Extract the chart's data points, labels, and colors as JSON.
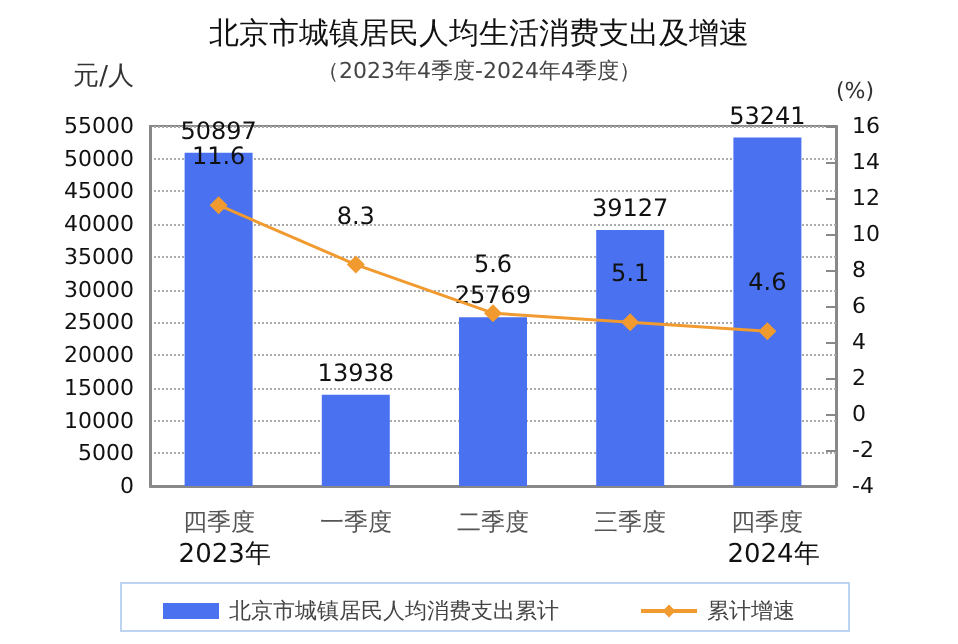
{
  "chart_data": {
    "type": "bar",
    "title": "北京市城镇居民人均生活消费支出及增速",
    "subtitle": "（2023年4季度-2024年4季度）",
    "ylabel": "元/人",
    "y2label": "(%)",
    "categories": [
      "四季度",
      "一季度",
      "二季度",
      "三季度",
      "四季度"
    ],
    "annotations": [
      "2023年",
      "2024年"
    ],
    "series": [
      {
        "name": "北京市城镇居民人均消费支出累计",
        "color": "#4a72f0",
        "values": [
          50897,
          13938,
          25769,
          39127,
          53241
        ]
      },
      {
        "name": "累计增速",
        "type": "line",
        "axis": "y2",
        "color": "#f09a30",
        "marker": "diamond",
        "values": [
          11.6,
          8.3,
          5.6,
          5.1,
          4.6
        ]
      }
    ],
    "ylim": [
      0,
      55000
    ],
    "yticks": [
      0,
      5000,
      10000,
      15000,
      20000,
      25000,
      30000,
      35000,
      40000,
      45000,
      50000,
      55000
    ],
    "y2lim": [
      -4,
      16
    ],
    "y2ticks": [
      -4,
      -2,
      0,
      2,
      4,
      6,
      8,
      10,
      12,
      14,
      16
    ],
    "grid": "y",
    "legend": "bottom",
    "data_labels": true
  }
}
